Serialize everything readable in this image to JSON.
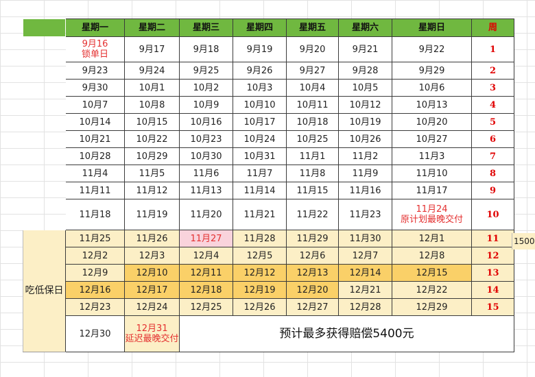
{
  "header": {
    "days": [
      "星期一",
      "星期二",
      "星期三",
      "星期四",
      "星期五",
      "星期六",
      "星期日"
    ],
    "week": "周"
  },
  "rows": [
    {
      "cells": [
        "9月16\n锁单日",
        "9月17",
        "9月18",
        "9月19",
        "9月20",
        "9月21",
        "9月22"
      ],
      "week": "1"
    },
    {
      "cells": [
        "9月23",
        "9月24",
        "9月25",
        "9月26",
        "9月27",
        "9月28",
        "9月29"
      ],
      "week": "2"
    },
    {
      "cells": [
        "9月30",
        "10月1",
        "10月2",
        "10月3",
        "10月4",
        "10月5",
        "10月6"
      ],
      "week": "3"
    },
    {
      "cells": [
        "10月7",
        "10月8",
        "10月9",
        "10月10",
        "10月11",
        "10月12",
        "10月13"
      ],
      "week": "4"
    },
    {
      "cells": [
        "10月14",
        "10月15",
        "10月16",
        "10月17",
        "10月18",
        "10月19",
        "10月20"
      ],
      "week": "5"
    },
    {
      "cells": [
        "10月21",
        "10月22",
        "10月23",
        "10月24",
        "10月25",
        "10月26",
        "10月27"
      ],
      "week": "6"
    },
    {
      "cells": [
        "10月28",
        "10月29",
        "10月30",
        "10月31",
        "11月1",
        "11月2",
        "11月3"
      ],
      "week": "7"
    },
    {
      "cells": [
        "11月4",
        "11月5",
        "11月6",
        "11月7",
        "11月8",
        "11月9",
        "11月10"
      ],
      "week": "8"
    },
    {
      "cells": [
        "11月11",
        "11月12",
        "11月13",
        "11月14",
        "11月15",
        "11月16",
        "11月17"
      ],
      "week": "9"
    },
    {
      "cells": [
        "11月18",
        "11月19",
        "11月20",
        "11月21",
        "11月22",
        "11月23",
        "11月24\n原计划最晚交付"
      ],
      "week": "10"
    },
    {
      "cells": [
        "11月25",
        "11月26",
        "11月27",
        "11月28",
        "11月29",
        "11月30",
        "12月1"
      ],
      "week": "11"
    },
    {
      "cells": [
        "12月2",
        "12月3",
        "12月4",
        "12月5",
        "12月6",
        "12月7",
        "12月8"
      ],
      "week": "12"
    },
    {
      "cells": [
        "12月9",
        "12月10",
        "12月11",
        "12月12",
        "12月13",
        "12月14",
        "12月15"
      ],
      "week": "13"
    },
    {
      "cells": [
        "12月16",
        "12月17",
        "12月18",
        "12月19",
        "12月20",
        "12月21",
        "12月22"
      ],
      "week": "14"
    },
    {
      "cells": [
        "12月23",
        "12月24",
        "12月25",
        "12月26",
        "12月27",
        "12月28",
        "12月29"
      ],
      "week": "15"
    },
    {
      "cells": [
        "12月30",
        "12月31\n延迟最晚交付"
      ],
      "week": ""
    }
  ],
  "side_label": "吃低保日",
  "summary": "预计最多获得赔偿5400元",
  "overflow_note": "1500",
  "colors": {
    "header_green": "#70b840",
    "highlight_light": "#fcefc6",
    "highlight_dark": "#fad068",
    "highlight_pink": "#f9d3dc",
    "note_red": "#e43030",
    "week_red": "#e00000"
  }
}
